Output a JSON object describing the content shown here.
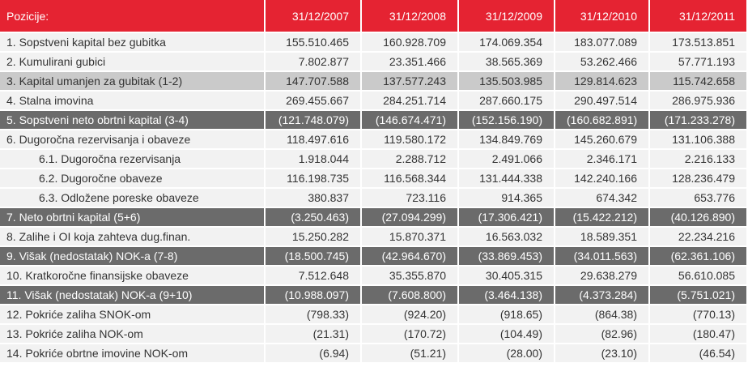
{
  "table": {
    "headers": [
      "Pozicije:",
      "31/12/2007",
      "31/12/2008",
      "31/12/2009",
      "31/12/2010",
      "31/12/2011"
    ],
    "rows": [
      {
        "label": "1.  Sopstveni kapital bez gubitka",
        "values": [
          "155.510.465",
          "160.928.709",
          "174.069.354",
          "183.077.089",
          "173.513.851"
        ],
        "style": "normal",
        "indent": false
      },
      {
        "label": "2.  Kumulirani gubici",
        "values": [
          "7.802.877",
          "23.351.466",
          "38.565.369",
          "53.262.466",
          "57.771.193"
        ],
        "style": "normal",
        "indent": false
      },
      {
        "label": "3.  Kapital umanjen za gubitak (1-2)",
        "values": [
          "147.707.588",
          "137.577.243",
          "135.503.985",
          "129.814.623",
          "115.742.658"
        ],
        "style": "light",
        "indent": false
      },
      {
        "label": "4.  Stalna imovina",
        "values": [
          "269.455.667",
          "284.251.714",
          "287.660.175",
          "290.497.514",
          "286.975.936"
        ],
        "style": "normal",
        "indent": false
      },
      {
        "label": "5.  Sopstveni neto obrtni kapital (3-4)",
        "values": [
          "(121.748.079)",
          "(146.674.471)",
          "(152.156.190)",
          "(160.682.891)",
          "(171.233.278)"
        ],
        "style": "dark",
        "indent": false
      },
      {
        "label": "6.  Dugoročna rezervisanja i obaveze",
        "values": [
          "118.497.616",
          "119.580.172",
          "134.849.769",
          "145.260.679",
          "131.106.388"
        ],
        "style": "normal",
        "indent": false
      },
      {
        "label": "6.1. Dugoročna rezervisanja",
        "values": [
          "1.918.044",
          "2.288.712",
          "2.491.066",
          "2.346.171",
          "2.216.133"
        ],
        "style": "normal",
        "indent": true
      },
      {
        "label": "6.2. Dugoročne obaveze",
        "values": [
          "116.198.735",
          "116.568.344",
          "131.444.338",
          "142.240.166",
          "128.236.479"
        ],
        "style": "normal",
        "indent": true
      },
      {
        "label": "6.3. Odložene poreske obaveze",
        "values": [
          "380.837",
          "723.116",
          "914.365",
          "674.342",
          "653.776"
        ],
        "style": "normal",
        "indent": true
      },
      {
        "label": "7.  Neto obrtni kapital (5+6)",
        "values": [
          "(3.250.463)",
          "(27.094.299)",
          "(17.306.421)",
          "(15.422.212)",
          "(40.126.890)"
        ],
        "style": "dark",
        "indent": false
      },
      {
        "label": "8.  Zalihe i OI koja zahteva dug.finan.",
        "values": [
          "15.250.282",
          "15.870.371",
          "16.563.032",
          "18.589.351",
          "22.234.216"
        ],
        "style": "normal",
        "indent": false
      },
      {
        "label": "9.  Višak (nedostatak) NOK-a (7-8)",
        "values": [
          "(18.500.745)",
          "(42.964.670)",
          "(33.869.453)",
          "(34.011.563)",
          "(62.361.106)"
        ],
        "style": "dark",
        "indent": false
      },
      {
        "label": "10. Kratkoročne finansijske obaveze",
        "values": [
          "7.512.648",
          "35.355.870",
          "30.405.315",
          "29.638.279",
          "56.610.085"
        ],
        "style": "normal",
        "indent": false
      },
      {
        "label": "11. Višak (nedostatak) NOK-a (9+10)",
        "values": [
          "(10.988.097)",
          "(7.608.800)",
          "(3.464.138)",
          "(4.373.284)",
          "(5.751.021)"
        ],
        "style": "dark",
        "indent": false
      },
      {
        "label": "12. Pokriće zaliha SNOK-om",
        "values": [
          "(798.33)",
          "(924.20)",
          "(918.65)",
          "(864.38)",
          "(770.13)"
        ],
        "style": "normal",
        "indent": false
      },
      {
        "label": "13. Pokriće zaliha NOK-om",
        "values": [
          "(21.31)",
          "(170.72)",
          "(104.49)",
          "(82.96)",
          "(180.47)"
        ],
        "style": "normal",
        "indent": false
      },
      {
        "label": "14. Pokriće obrtne imovine NOK-om",
        "values": [
          "(6.94)",
          "(51.21)",
          "(28.00)",
          "(23.10)",
          "(46.54)"
        ],
        "style": "normal",
        "indent": false
      }
    ]
  }
}
